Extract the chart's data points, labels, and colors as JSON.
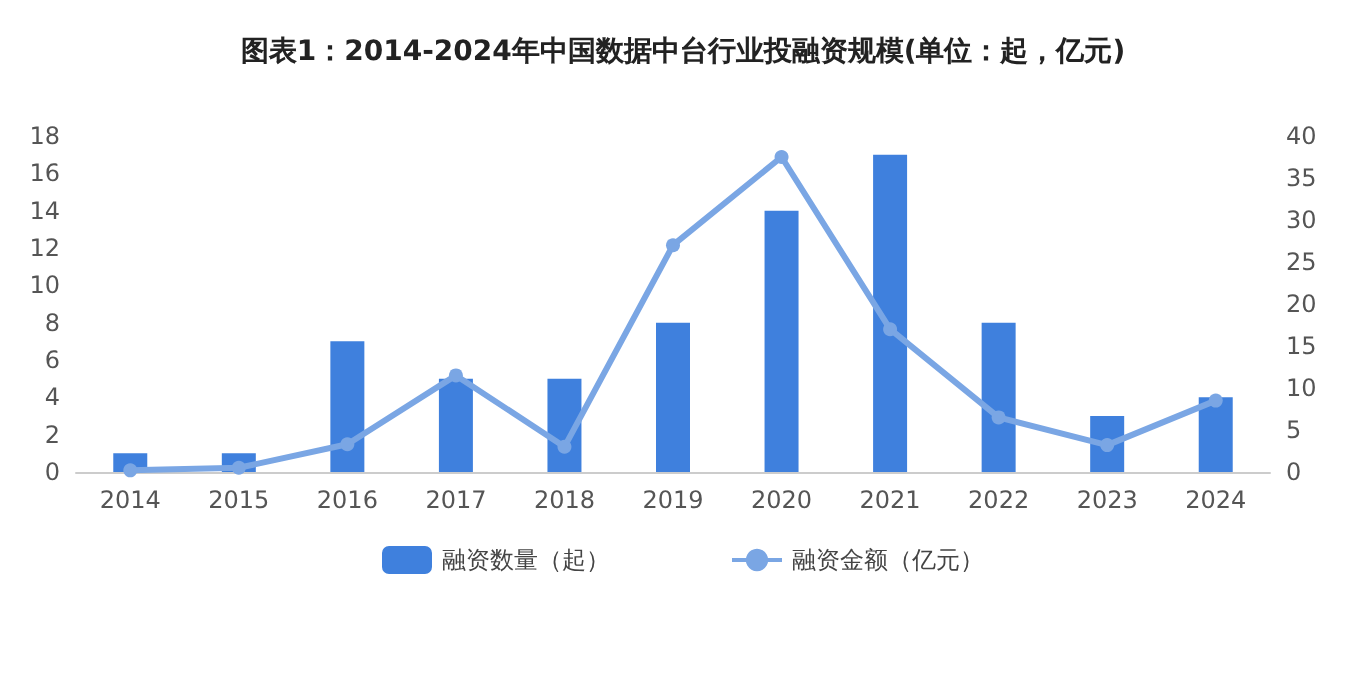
{
  "chart_data": {
    "type": "bar",
    "title": "图表1：2014-2024年中国数据中台行业投融资规模(单位：起，亿元)",
    "categories": [
      "2014",
      "2015",
      "2016",
      "2017",
      "2018",
      "2019",
      "2020",
      "2021",
      "2022",
      "2023",
      "2024"
    ],
    "series": [
      {
        "name": "融资数量（起）",
        "color": "#3f80dd",
        "values": [
          1,
          1,
          7,
          5,
          5,
          8,
          14,
          17,
          8,
          3,
          4
        ]
      },
      {
        "name": "融资金额（亿元）",
        "type": "line",
        "axis": "y2",
        "color": "#7aa6e4",
        "marker": "circle",
        "values": [
          0.2,
          0.5,
          3.3,
          11.5,
          3,
          27,
          37.5,
          17,
          6.5,
          3.2,
          8.5
        ]
      }
    ],
    "ylim": [
      0,
      18
    ],
    "yticks": [
      0,
      2,
      4,
      6,
      8,
      10,
      12,
      14,
      16,
      18
    ],
    "y2lim": [
      0,
      40
    ],
    "y2ticks": [
      0,
      5,
      10,
      15,
      20,
      25,
      30,
      35,
      40
    ],
    "grid": false,
    "legend": "bottom"
  }
}
